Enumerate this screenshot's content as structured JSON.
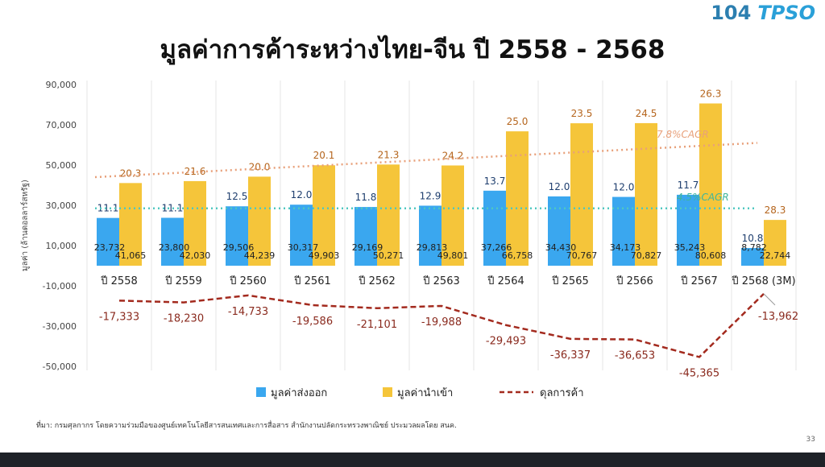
{
  "header": {
    "title": "มูลค่าการค้าระหว่างไทย-จีน ปี 2558 - 2568",
    "logo_left": "104",
    "logo_right": "TPSO"
  },
  "footer": {
    "source": "ที่มา: กรมศุลกากร โดยความร่วมมือของศูนย์เทคโนโลยีสารสนเทศและการสื่อสาร สำนักงานปลัดกระทรวงพาณิชย์ ประมวลผลโดย สนค.",
    "page_number": "33"
  },
  "colors": {
    "export": "#3aa7ef",
    "import": "#f5c53a",
    "balance": "#a32a1e",
    "cagr_import": "#e8a07a",
    "cagr_export": "#4fc7c0"
  },
  "chart_data": {
    "type": "bar",
    "title": "มูลค่าการค้าระหว่างไทย-จีน ปี 2558 - 2568",
    "ylabel": "มูลค่า (ล้านดอลลาร์สหรัฐ)",
    "ylim": [
      -50000,
      90000
    ],
    "yticks": [
      "90,000",
      "70,000",
      "50,000",
      "30,000",
      "10,000",
      "-10,000",
      "-30,000",
      "-50,000"
    ],
    "ytick_values": [
      90000,
      70000,
      50000,
      30000,
      10000,
      -10000,
      -30000,
      -50000
    ],
    "categories": [
      "ปี 2558",
      "ปี 2559",
      "ปี 2560",
      "ปี 2561",
      "ปี 2562",
      "ปี 2563",
      "ปี 2564",
      "ปี 2565",
      "ปี 2566",
      "ปี 2567",
      "ปี 2568 (3M)"
    ],
    "series": [
      {
        "name": "มูลค่าส่งออก",
        "type": "bar",
        "values": [
          23732,
          23800,
          29506,
          30317,
          29169,
          29813,
          37266,
          34430,
          34173,
          35243,
          8782
        ],
        "labels": [
          "23,732",
          "23,800",
          "29,506",
          "30,317",
          "29,169",
          "29,813",
          "37,266",
          "34,430",
          "34,173",
          "35,243",
          "8,782"
        ],
        "shares": [
          "11.1",
          "11.1",
          "12.5",
          "12.0",
          "11.8",
          "12.9",
          "13.7",
          "12.0",
          "12.0",
          "11.7",
          "10.8"
        ]
      },
      {
        "name": "มูลค่านำเข้า",
        "type": "bar",
        "values": [
          41065,
          42030,
          44239,
          49903,
          50271,
          49801,
          66758,
          70767,
          70827,
          80608,
          22744
        ],
        "labels": [
          "41,065",
          "42,030",
          "44,239",
          "49,903",
          "50,271",
          "49,801",
          "66,758",
          "70,767",
          "70,827",
          "80,608",
          "22,744"
        ],
        "shares": [
          "20.3",
          "21.6",
          "20.0",
          "20.1",
          "21.3",
          "24.2",
          "25.0",
          "23.5",
          "24.5",
          "26.3",
          "28.3"
        ]
      },
      {
        "name": "ดุลการค้า",
        "type": "line",
        "values": [
          -17333,
          -18230,
          -14733,
          -19586,
          -21101,
          -19988,
          -29493,
          -36337,
          -36653,
          -45365,
          -13962
        ],
        "labels": [
          "-17,333",
          "-18,230",
          "-14,733",
          "-19,586",
          "-21,101",
          "-19,988",
          "-29,493",
          "-36,337",
          "-36,653",
          "-45,365",
          "-13,962"
        ]
      }
    ],
    "trendlines": [
      {
        "name": "7.8%CAGR",
        "start": 44000,
        "end": 61000
      },
      {
        "name": "4.5%CAGR",
        "start": 28500,
        "end": 28500
      }
    ],
    "legend": "bottom"
  }
}
